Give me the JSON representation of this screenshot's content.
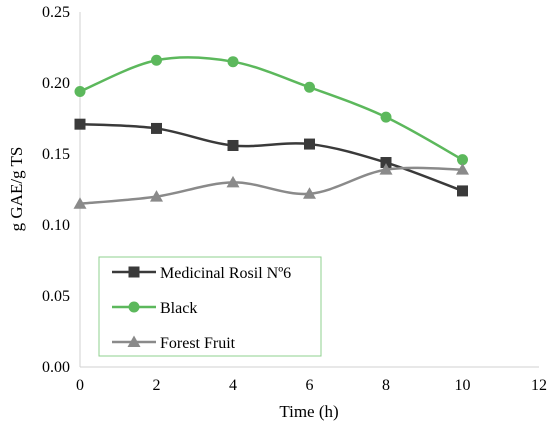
{
  "chart_data": {
    "type": "line",
    "xlabel": "Time (h)",
    "ylabel": "g GAE/g TS",
    "xlim": [
      0,
      12
    ],
    "ylim": [
      0,
      0.25
    ],
    "x_ticks": [
      "0",
      "2",
      "4",
      "6",
      "8",
      "10",
      "12"
    ],
    "y_ticks": [
      "0.00",
      "0.05",
      "0.10",
      "0.15",
      "0.20",
      "0.25"
    ],
    "grid": "none",
    "legend_position": "bottom-left inside",
    "series": [
      {
        "name": "Medicinal Rosil Nº6",
        "color": "#3a3a3a",
        "marker": "square",
        "x": [
          0,
          2,
          4,
          6,
          8,
          10
        ],
        "values": [
          0.171,
          0.168,
          0.156,
          0.157,
          0.144,
          0.124
        ]
      },
      {
        "name": "Black",
        "color": "#5cb85c",
        "marker": "circle",
        "x": [
          0,
          2,
          4,
          6,
          8,
          10
        ],
        "values": [
          0.194,
          0.216,
          0.215,
          0.197,
          0.176,
          0.146
        ]
      },
      {
        "name": "Forest Fruit",
        "color": "#8a8a8a",
        "marker": "triangle",
        "x": [
          0,
          2,
          4,
          6,
          8,
          10
        ],
        "values": [
          0.115,
          0.12,
          0.13,
          0.122,
          0.139,
          0.139
        ]
      }
    ]
  }
}
